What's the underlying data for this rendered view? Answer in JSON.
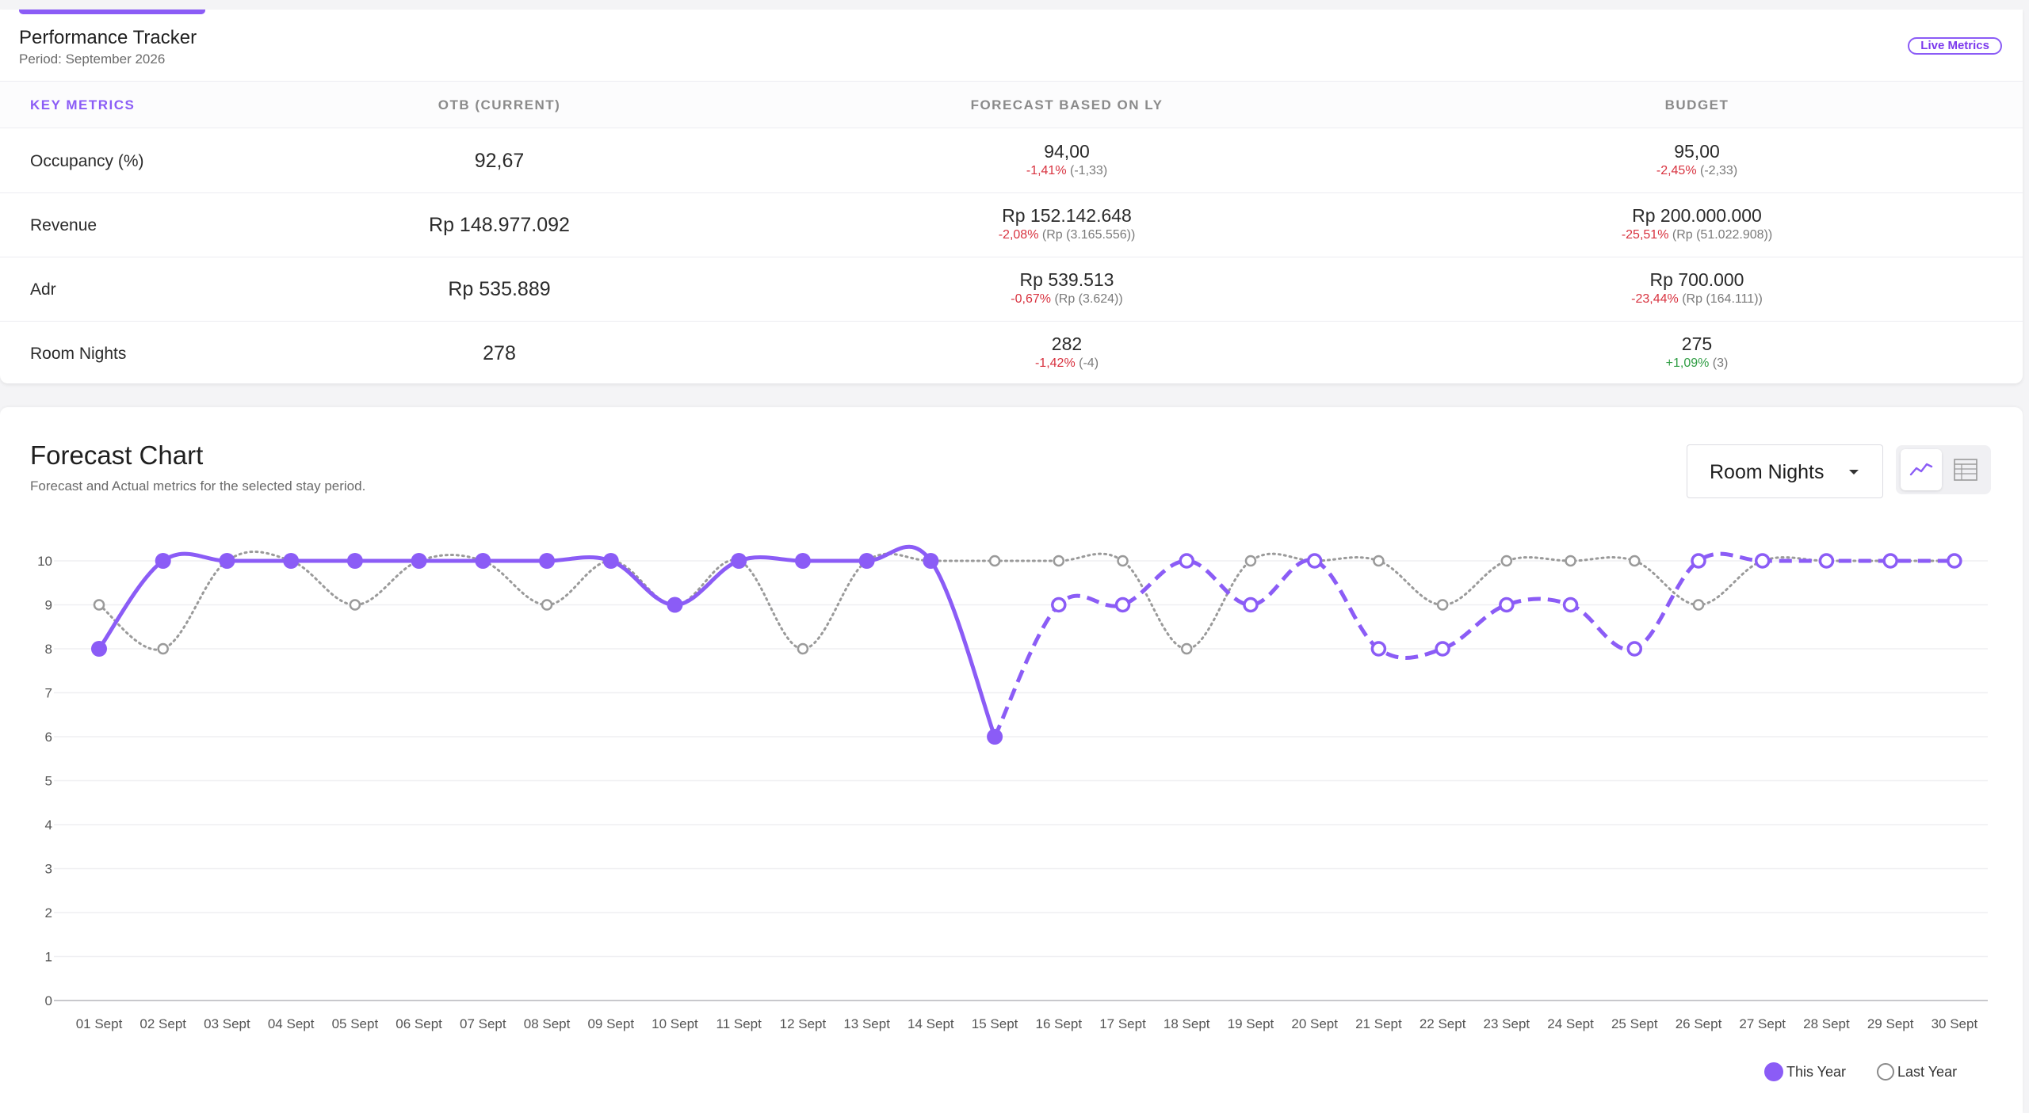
{
  "tracker": {
    "title": "Performance Tracker",
    "period": "Period: September 2026",
    "badge": "Live Metrics",
    "headers": [
      "KEY METRICS",
      "OTB (CURRENT)",
      "FORECAST BASED ON LY",
      "BUDGET"
    ],
    "rows": [
      {
        "label": "Occupancy (%)",
        "otb": "92,67",
        "forecast": {
          "value": "94,00",
          "pct": "-1,41%",
          "diff": "(-1,33)",
          "trend": "neg"
        },
        "budget": {
          "value": "95,00",
          "pct": "-2,45%",
          "diff": "(-2,33)",
          "trend": "neg"
        }
      },
      {
        "label": "Revenue",
        "otb": "Rp 148.977.092",
        "forecast": {
          "value": "Rp 152.142.648",
          "pct": "-2,08%",
          "diff": "(Rp (3.165.556))",
          "trend": "neg"
        },
        "budget": {
          "value": "Rp 200.000.000",
          "pct": "-25,51%",
          "diff": "(Rp (51.022.908))",
          "trend": "neg"
        }
      },
      {
        "label": "Adr",
        "otb": "Rp 535.889",
        "forecast": {
          "value": "Rp 539.513",
          "pct": "-0,67%",
          "diff": "(Rp (3.624))",
          "trend": "neg"
        },
        "budget": {
          "value": "Rp 700.000",
          "pct": "-23,44%",
          "diff": "(Rp (164.111))",
          "trend": "neg"
        }
      },
      {
        "label": "Room Nights",
        "otb": "278",
        "forecast": {
          "value": "282",
          "pct": "-1,42%",
          "diff": "(-4)",
          "trend": "neg"
        },
        "budget": {
          "value": "275",
          "pct": "+1,09%",
          "diff": "(3)",
          "trend": "pos"
        }
      }
    ]
  },
  "chart": {
    "title": "Forecast Chart",
    "subtitle": "Forecast and Actual metrics for the selected stay period.",
    "selected_metric": "Room Nights",
    "view_icons": [
      "line-chart-icon",
      "table-view-icon"
    ],
    "legend": {
      "this_year": "This Year",
      "last_year": "Last Year"
    }
  },
  "chart_data": {
    "type": "line",
    "title": "Forecast Chart",
    "categories": [
      "01 Sept",
      "02 Sept",
      "03 Sept",
      "04 Sept",
      "05 Sept",
      "06 Sept",
      "07 Sept",
      "08 Sept",
      "09 Sept",
      "10 Sept",
      "11 Sept",
      "12 Sept",
      "13 Sept",
      "14 Sept",
      "15 Sept",
      "16 Sept",
      "17 Sept",
      "18 Sept",
      "19 Sept",
      "20 Sept",
      "21 Sept",
      "22 Sept",
      "23 Sept",
      "24 Sept",
      "25 Sept",
      "26 Sept",
      "27 Sept",
      "28 Sept",
      "29 Sept",
      "30 Sept"
    ],
    "ylim": [
      0,
      10
    ],
    "yticks": [
      0,
      1,
      2,
      3,
      4,
      5,
      6,
      7,
      8,
      9,
      10
    ],
    "grid": true,
    "legend_position": "bottom-right",
    "series": [
      {
        "name": "This Year",
        "color": "#8b5cf6",
        "values": [
          8,
          10,
          10,
          10,
          10,
          10,
          10,
          10,
          10,
          9,
          10,
          10,
          10,
          10,
          6,
          9,
          9,
          10,
          9,
          10,
          8,
          8,
          9,
          9,
          8,
          10,
          10,
          10,
          10,
          10
        ],
        "actual_through": "15 Sept",
        "forecast_style": "dashed"
      },
      {
        "name": "Last Year",
        "color": "#9a9a9a",
        "values": [
          9,
          8,
          10,
          10,
          9,
          10,
          10,
          9,
          10,
          9,
          10,
          8,
          10,
          10,
          10,
          10,
          10,
          8,
          10,
          10,
          10,
          9,
          10,
          10,
          10,
          9,
          10,
          10,
          10,
          10
        ],
        "style": "dotted"
      }
    ]
  }
}
